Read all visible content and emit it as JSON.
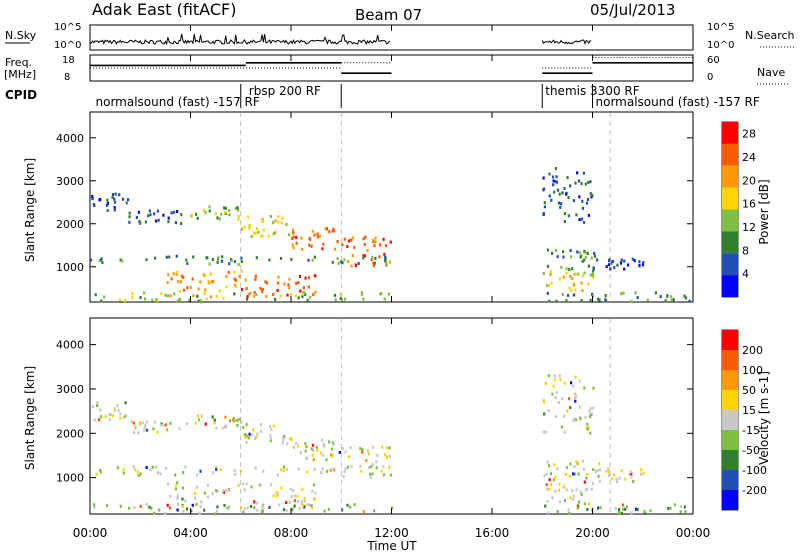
{
  "header": {
    "title": "Adak East (fitACF)",
    "beam": "Beam 07",
    "date": "05/Jul/2013"
  },
  "noise_panel": {
    "left_label": "N.Sky",
    "right_label": "N.Search",
    "left_ticks": [
      "10^5",
      "10^0"
    ],
    "right_ticks": [
      "10^5",
      "10^0"
    ]
  },
  "freq_panel": {
    "left_label_1": "Freq.",
    "left_label_2": "[MHz]",
    "right_label": "Nave",
    "left_ticks": [
      "18",
      "8"
    ],
    "right_ticks": [
      "60",
      "0"
    ],
    "freq_series": [
      {
        "t0": 0.0,
        "t1": 6.2,
        "value": 14.0
      },
      {
        "t0": 6.2,
        "t1": 10.0,
        "value": 15.0
      },
      {
        "t0": 10.0,
        "t1": 12.0,
        "value": 11.0
      },
      {
        "t0": 18.0,
        "t1": 20.0,
        "value": 11.0
      },
      {
        "t0": 20.0,
        "t1": 24.0,
        "value": 15.0
      }
    ],
    "nave_series": [
      {
        "t0": 0.0,
        "t1": 10.0,
        "value": 30
      },
      {
        "t0": 10.0,
        "t1": 12.0,
        "value": 42
      },
      {
        "t0": 18.0,
        "t1": 20.0,
        "value": 30
      },
      {
        "t0": 20.0,
        "t1": 24.0,
        "value": 54
      }
    ]
  },
  "cpid": {
    "label": "CPID",
    "segments": [
      {
        "text": "normalsound (fast) -157 RF",
        "t": 0.1,
        "level": "low"
      },
      {
        "text": "rbsp 200 RF",
        "t": 6.2,
        "level": "high"
      },
      {
        "text": "themis 3300 RF",
        "t": 18.0,
        "level": "high"
      },
      {
        "text": "normalsound (fast) -157 RF",
        "t": 20.0,
        "level": "low"
      }
    ],
    "dividers": [
      6.0,
      10.0,
      18.0,
      20.0
    ]
  },
  "chart_data": [
    {
      "type": "heatmap",
      "parameter": "Power",
      "ylabel": "Slant Range [km]",
      "ylim": [
        180,
        4600
      ],
      "xlim_hours": [
        0,
        24
      ],
      "yticks": [
        "1000",
        "2000",
        "3000",
        "4000"
      ],
      "colorbar_label": "Power [dB]",
      "colorbar_ticks": [
        "4",
        "8",
        "12",
        "16",
        "20",
        "24",
        "28"
      ],
      "colorbar_range": [
        0,
        30
      ],
      "colors": [
        "#0000ff",
        "#1f4fb4",
        "#2f7f2f",
        "#7fbf3f",
        "#ffd400",
        "#ff9900",
        "#ff5a00",
        "#ff0000"
      ],
      "scatter_bands": [
        {
          "t0": 0.0,
          "t1": 1.5,
          "r0": 2300,
          "r1": 2700,
          "level": 1
        },
        {
          "t0": 1.5,
          "t1": 4.0,
          "r0": 2000,
          "r1": 2300,
          "level": 1
        },
        {
          "t0": 4.0,
          "t1": 6.0,
          "r0": 2100,
          "r1": 2400,
          "level": 3
        },
        {
          "t0": 6.0,
          "t1": 8.0,
          "r0": 1700,
          "r1": 2200,
          "level": 4
        },
        {
          "t0": 8.0,
          "t1": 10.0,
          "r0": 1400,
          "r1": 1900,
          "level": 6
        },
        {
          "t0": 10.0,
          "t1": 12.0,
          "r0": 1000,
          "r1": 1700,
          "level": 6
        },
        {
          "t0": 0.0,
          "t1": 12.0,
          "r0": 1050,
          "r1": 1250,
          "level": 2
        },
        {
          "t0": 3.0,
          "t1": 6.0,
          "r0": 300,
          "r1": 900,
          "level": 5
        },
        {
          "t0": 6.0,
          "t1": 9.0,
          "r0": 300,
          "r1": 800,
          "level": 6
        },
        {
          "t0": 0.0,
          "t1": 12.0,
          "r0": 180,
          "r1": 400,
          "level": 3
        },
        {
          "t0": 18.0,
          "t1": 20.3,
          "r0": 900,
          "r1": 1400,
          "level": 2
        },
        {
          "t0": 18.0,
          "t1": 20.0,
          "r0": 400,
          "r1": 900,
          "level": 4
        },
        {
          "t0": 18.0,
          "t1": 20.0,
          "r0": 2000,
          "r1": 3300,
          "level": 1
        },
        {
          "t0": 20.5,
          "t1": 22.0,
          "r0": 900,
          "r1": 1200,
          "level": 1
        },
        {
          "t0": 18.0,
          "t1": 24.0,
          "r0": 180,
          "r1": 400,
          "level": 2
        }
      ]
    },
    {
      "type": "heatmap",
      "parameter": "Velocity",
      "ylabel": "Slant Range [km]",
      "ylim": [
        180,
        4600
      ],
      "xlim_hours": [
        0,
        24
      ],
      "yticks": [
        "1000",
        "2000",
        "3000",
        "4000"
      ],
      "colorbar_label": "Velocity [m s-1]",
      "colorbar_ticks": [
        "200",
        "100",
        "50",
        "15",
        "-15",
        "-50",
        "-100",
        "-200"
      ],
      "colorbar_range": [
        -250,
        250
      ],
      "colors": [
        "#ff0000",
        "#ff5a00",
        "#ff9900",
        "#ffd400",
        "#c8c8c8",
        "#7fbf3f",
        "#2f7f2f",
        "#1f4fb4",
        "#0000ff"
      ],
      "scatter_bands": [
        {
          "t0": 0.0,
          "t1": 1.5,
          "r0": 2300,
          "r1": 2700,
          "level": 4
        },
        {
          "t0": 1.5,
          "t1": 4.0,
          "r0": 2000,
          "r1": 2300,
          "level": 4
        },
        {
          "t0": 4.0,
          "t1": 6.0,
          "r0": 2100,
          "r1": 2400,
          "level": 4
        },
        {
          "t0": 6.0,
          "t1": 8.0,
          "r0": 1700,
          "r1": 2200,
          "level": 4
        },
        {
          "t0": 8.0,
          "t1": 10.0,
          "r0": 1400,
          "r1": 1900,
          "level": 4
        },
        {
          "t0": 10.0,
          "t1": 12.0,
          "r0": 1000,
          "r1": 1700,
          "level": 4
        },
        {
          "t0": 0.0,
          "t1": 12.0,
          "r0": 1050,
          "r1": 1250,
          "level": 4
        },
        {
          "t0": 3.0,
          "t1": 9.0,
          "r0": 300,
          "r1": 900,
          "level": 4
        },
        {
          "t0": 0.0,
          "t1": 12.0,
          "r0": 180,
          "r1": 400,
          "level": 5
        },
        {
          "t0": 18.0,
          "t1": 20.3,
          "r0": 900,
          "r1": 1400,
          "level": 4
        },
        {
          "t0": 18.0,
          "t1": 20.0,
          "r0": 400,
          "r1": 900,
          "level": 4
        },
        {
          "t0": 18.0,
          "t1": 20.0,
          "r0": 2000,
          "r1": 3300,
          "level": 4
        },
        {
          "t0": 20.5,
          "t1": 22.0,
          "r0": 900,
          "r1": 1200,
          "level": 4
        },
        {
          "t0": 18.0,
          "t1": 24.0,
          "r0": 180,
          "r1": 400,
          "level": 5
        }
      ]
    }
  ],
  "time_axis": {
    "label": "Time UT",
    "ticks": [
      {
        "t": 0,
        "label": "00:00"
      },
      {
        "t": 4,
        "label": "04:00"
      },
      {
        "t": 8,
        "label": "08:00"
      },
      {
        "t": 12,
        "label": "12:00"
      },
      {
        "t": 16,
        "label": "16:00"
      },
      {
        "t": 20,
        "label": "20:00"
      },
      {
        "t": 24,
        "label": "00:00"
      }
    ]
  }
}
